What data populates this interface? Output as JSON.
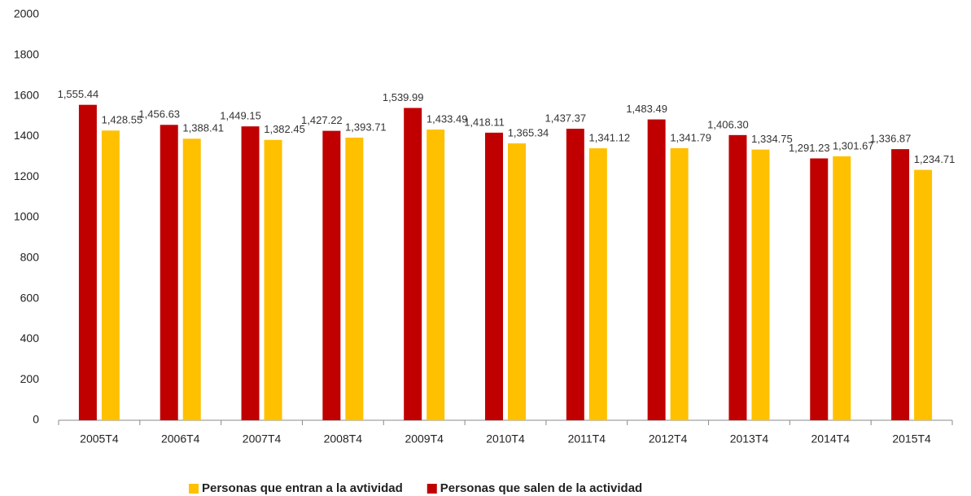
{
  "chart_data": {
    "type": "bar",
    "categories": [
      "2005T4",
      "2006T4",
      "2007T4",
      "2008T4",
      "2009T4",
      "2010T4",
      "2011T4",
      "2012T4",
      "2013T4",
      "2014T4",
      "2015T4"
    ],
    "series": [
      {
        "name": "Personas que salen de la actividad",
        "color": "#c00000",
        "values": [
          1555.44,
          1456.63,
          1449.15,
          1427.22,
          1539.99,
          1418.11,
          1437.37,
          1483.49,
          1406.3,
          1291.23,
          1336.87
        ],
        "value_labels": [
          "1,555.44",
          "1,456.63",
          "1,449.15",
          "1,427.22",
          "1,539.99",
          "1,418.11",
          "1,437.37",
          "1,483.49",
          "1,406.30",
          "1,291.23",
          "1,336.87"
        ]
      },
      {
        "name": "Personas que entran a la avtividad",
        "color": "#ffc000",
        "values": [
          1428.55,
          1388.41,
          1382.45,
          1393.71,
          1433.49,
          1365.34,
          1341.12,
          1341.79,
          1334.75,
          1301.67,
          1234.71
        ],
        "value_labels": [
          "1,428.55",
          "1,388.41",
          "1,382.45",
          "1,393.71",
          "1,433.49",
          "1,365.34",
          "1,341.12",
          "1,341.79",
          "1,334.75",
          "1,301.67",
          "1,234.71"
        ]
      }
    ],
    "ylim": [
      0,
      2000
    ],
    "yticks": [
      0,
      200,
      400,
      600,
      800,
      1000,
      1200,
      1400,
      1600,
      1800,
      2000
    ],
    "grid": false
  }
}
